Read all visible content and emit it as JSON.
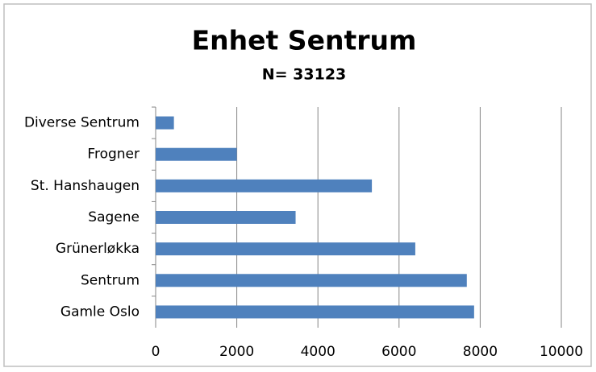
{
  "chart_data": {
    "type": "bar",
    "orientation": "horizontal",
    "title": "Enhet Sentrum",
    "subtitle": "N= 33123",
    "categories": [
      "Diverse Sentrum",
      "Frogner",
      "St. Hanshaugen",
      "Sagene",
      "Grünerløkka",
      "Sentrum",
      "Gamle Oslo"
    ],
    "values": [
      450,
      2000,
      5330,
      3450,
      6400,
      7670,
      7850
    ],
    "color": "#4f81bd",
    "xlim": [
      0,
      10000
    ],
    "xticks": [
      0,
      2000,
      4000,
      6000,
      8000,
      10000
    ],
    "grid": true
  }
}
